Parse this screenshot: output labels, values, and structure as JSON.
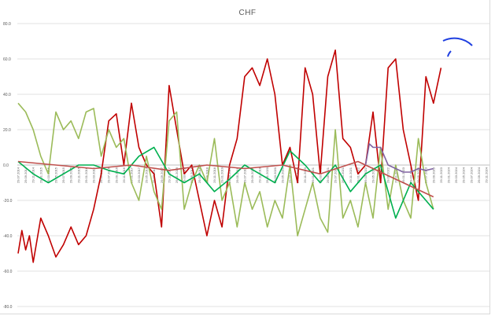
{
  "chart_data": {
    "type": "line",
    "title": "CHF",
    "xlabel": "",
    "ylabel": "",
    "ylim": [
      -80,
      80
    ],
    "y_ticks": [
      "80.0",
      "60.0",
      "40.0",
      "20.0",
      "0.0",
      "-20.0",
      "-40.0",
      "-60.0",
      "-80.0"
    ],
    "grid": true,
    "legend": "none",
    "x_tick_labels": [
      "29.07.2014",
      "29.09.2014",
      "29.11.2014",
      "29.01.2015",
      "29.03.2015",
      "29.05.2015",
      "29.07.2015",
      "29.09.2015",
      "29.11.2015",
      "29.01.2016",
      "29.03.2016",
      "29.05.2016",
      "29.07.2016",
      "29.09.2016",
      "29.11.2016",
      "29.01.2017",
      "29.03.2017",
      "29.05.2017",
      "29.07.2017",
      "29.09.2017",
      "29.11.2017",
      "29.01.2018",
      "29.03.2018",
      "29.05.2018",
      "29.07.2018",
      "29.09.2018",
      "29.11.2018",
      "29.01.2019",
      "29.03.2019",
      "29.05.2019",
      "29.07.2019",
      "29.09.2019",
      "29.11.2019",
      "29.01.2020",
      "29.03.2020",
      "29.05.2020",
      "29.07.2020",
      "29.09.2020",
      "29.11.2020",
      "29.01.2021",
      "29.03.2021",
      "29.05.2021",
      "29.07.2021",
      "29.09.2021",
      "29.11.2021",
      "29.01.2022",
      "29.03.2022",
      "29.05.2022",
      "29.07.2022",
      "29.09.2022",
      "29.11.2022",
      "29.01.2023",
      "29.03.2023",
      "29.05.2023",
      "29.07.2023",
      "29.09.2023",
      "29.11.2023",
      "29.01.2024",
      "29.03.2024",
      "29.05.2024",
      "29.07.2024",
      "29.09.2024",
      "29.11.2024"
    ],
    "x_range": [
      0,
      62
    ],
    "series": [
      {
        "color": "#c00000",
        "x": [
          0,
          0.5,
          1,
          1.5,
          2,
          3,
          4,
          5,
          6,
          7,
          8,
          9,
          10,
          11,
          11.5,
          12,
          13,
          14,
          15,
          16,
          17,
          18,
          19,
          20,
          21,
          22,
          23,
          24,
          25,
          26,
          27,
          28,
          29,
          30,
          31,
          32,
          33,
          34,
          35,
          36,
          37,
          38,
          39,
          40,
          41,
          42,
          43,
          44,
          45,
          46,
          47,
          48,
          49,
          50,
          51,
          52,
          53,
          54,
          55,
          56
        ],
        "y": [
          -50,
          -37,
          -48,
          -40,
          -55,
          -30,
          -40,
          -52,
          -45,
          -35,
          -45,
          -40,
          -25,
          -5,
          10,
          25,
          29,
          0,
          35,
          10,
          0,
          -5,
          -35,
          45,
          20,
          -5,
          0,
          -20,
          -40,
          -20,
          -35,
          0,
          15,
          50,
          55,
          45,
          60,
          40,
          0,
          10,
          -10,
          55,
          40,
          -5,
          50,
          65,
          15,
          10,
          -5,
          0,
          30,
          -10,
          55,
          60,
          20,
          0,
          -20,
          50,
          35,
          55
        ]
      },
      {
        "color": "#9bbb59",
        "x": [
          0,
          1,
          2,
          3,
          4,
          5,
          6,
          7,
          8,
          9,
          10,
          11,
          12,
          13,
          14,
          15,
          16,
          17,
          18,
          19,
          20,
          21,
          22,
          23,
          24,
          25,
          26,
          27,
          28,
          29,
          30,
          31,
          32,
          33,
          34,
          35,
          36,
          37,
          38,
          39,
          40,
          41,
          42,
          43,
          44,
          45,
          46,
          47,
          48,
          49,
          50,
          51,
          52,
          53,
          54,
          55
        ],
        "y": [
          35,
          30,
          20,
          5,
          -5,
          30,
          20,
          25,
          15,
          30,
          32,
          5,
          20,
          10,
          15,
          -10,
          -20,
          5,
          -15,
          -25,
          25,
          30,
          -25,
          -10,
          0,
          -10,
          15,
          -20,
          -10,
          -35,
          -10,
          -25,
          -15,
          -35,
          -20,
          -30,
          0,
          -40,
          -25,
          -10,
          -30,
          -38,
          20,
          -30,
          -20,
          -35,
          -10,
          -30,
          10,
          -25,
          0,
          -20,
          -30,
          15,
          -10,
          -25
        ]
      },
      {
        "color": "#00b050",
        "x": [
          0,
          2,
          4,
          6,
          8,
          10,
          12,
          14,
          16,
          18,
          20,
          22,
          24,
          26,
          28,
          30,
          32,
          34,
          36,
          38,
          40,
          42,
          44,
          46,
          48,
          50,
          52,
          53,
          54,
          55
        ],
        "y": [
          2,
          -5,
          -10,
          -5,
          0,
          0,
          -3,
          -5,
          5,
          10,
          -5,
          -10,
          -5,
          -15,
          -8,
          0,
          -5,
          -10,
          8,
          0,
          -10,
          0,
          -15,
          -5,
          0,
          -30,
          -10,
          -15,
          -20,
          -25
        ]
      },
      {
        "color": "#c0504d",
        "x": [
          0,
          5,
          10,
          15,
          20,
          25,
          30,
          35,
          40,
          45,
          50,
          55
        ],
        "y": [
          2,
          0,
          -2,
          0,
          -3,
          0,
          -2,
          0,
          -5,
          2,
          -8,
          -18
        ]
      },
      {
        "color": "#8064a2",
        "x": [
          46,
          46.5,
          47,
          48,
          49,
          50,
          51,
          52,
          53,
          54,
          55
        ],
        "y": [
          0,
          12,
          10,
          10,
          0,
          -2,
          -4,
          -4,
          -2,
          -3,
          -2
        ]
      }
    ]
  }
}
